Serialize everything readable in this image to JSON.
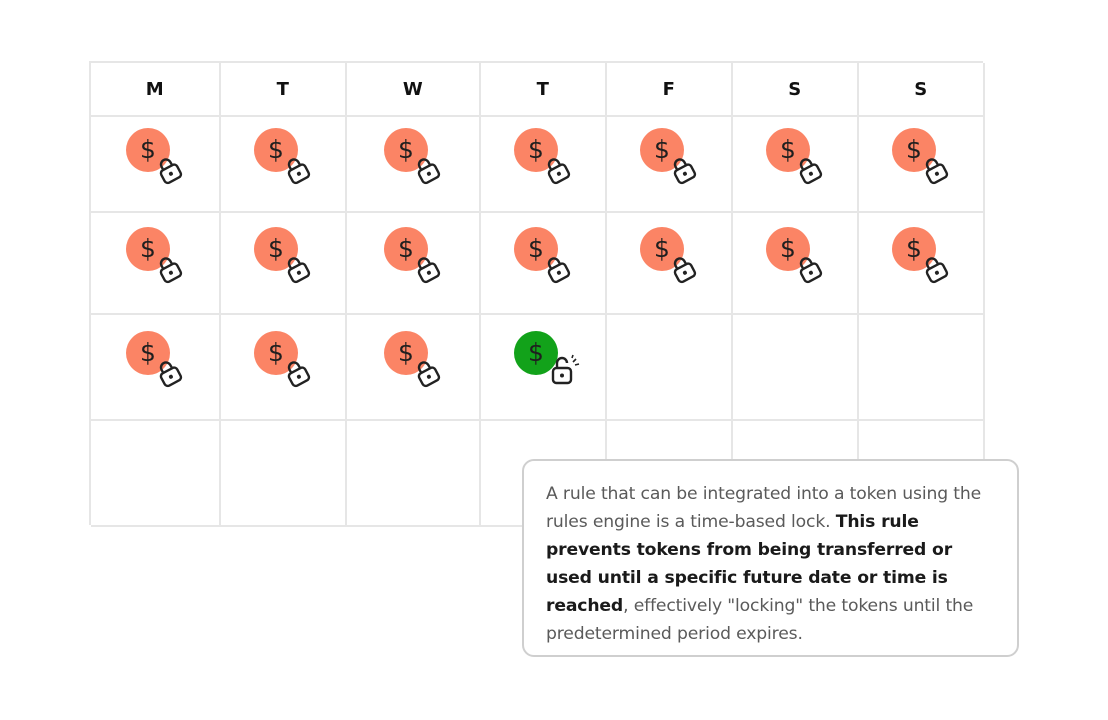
{
  "calendar": {
    "days": [
      "M",
      "T",
      "W",
      "T",
      "F",
      "S",
      "S"
    ],
    "weeks": [
      [
        "locked",
        "locked",
        "locked",
        "locked",
        "locked",
        "locked",
        "locked"
      ],
      [
        "locked",
        "locked",
        "locked",
        "locked",
        "locked",
        "locked",
        "locked"
      ],
      [
        "locked",
        "locked",
        "locked",
        "unlocked",
        "",
        "",
        ""
      ],
      [
        "",
        "",
        "",
        "",
        "",
        "",
        ""
      ]
    ],
    "coin_symbol": "$",
    "colors": {
      "locked_coin": "#fb8465",
      "unlocked_coin": "#12a21a",
      "grid": "#e6e6e6"
    },
    "icons": {
      "coin": "dollar-coin-icon",
      "locked": "padlock-closed-icon",
      "unlocked": "padlock-open-icon"
    }
  },
  "callout": {
    "text_1": "A rule that can be integrated into a token using the rules engine is a time-based lock. ",
    "text_bold": "This rule prevents tokens from being transferred or used until a specific future date or time is reached",
    "text_2": ", effectively \"locking\" the tokens until the predetermined period expires."
  }
}
